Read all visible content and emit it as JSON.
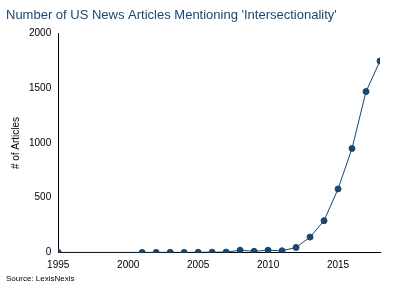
{
  "chart_data": {
    "type": "line",
    "title": "Number of US News Articles Mentioning 'Intersectionality'",
    "y_label": "# of Articles",
    "note": "Source: LexisNexis",
    "x": [
      1995,
      2001,
      2002,
      2003,
      2004,
      2005,
      2006,
      2007,
      2008,
      2009,
      2010,
      2011,
      2012,
      2013,
      2014,
      2015,
      2016,
      2017,
      2018
    ],
    "values": [
      0,
      0,
      0,
      1,
      0,
      1,
      2,
      3,
      20,
      10,
      20,
      15,
      45,
      140,
      290,
      580,
      950,
      1470,
      1750
    ],
    "color": "#1a476f",
    "marker": "circle",
    "line_style": "solid",
    "xlim": [
      1995,
      2018
    ],
    "xticks": [
      1995,
      2000,
      2005,
      2010,
      2015
    ],
    "ylim": [
      0,
      2000
    ],
    "yticks": [
      0,
      500,
      1000,
      1500,
      2000
    ],
    "grid": false
  }
}
